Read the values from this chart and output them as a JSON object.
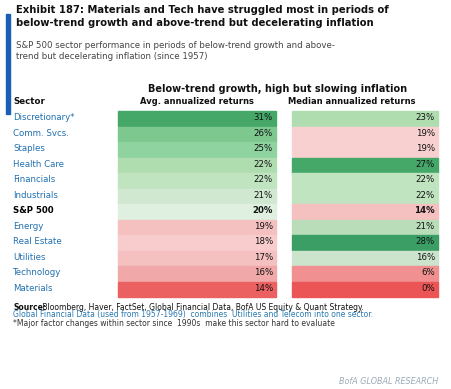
{
  "title_bold": "Exhibit 187: Materials and Tech have struggled most in periods of\nbelow-trend growth and above-trend but decelerating inflation",
  "subtitle": "S&P 500 sector performance in periods of below-trend growth and above-\ntrend but decelerating inflation (since 1957)",
  "table_header": "Below-trend growth, high but slowing inflation",
  "col1_header": "Sector",
  "col2_header": "Avg. annualized returns",
  "col3_header": "Median annualized returns",
  "sectors": [
    "Discretionary*",
    "Comm. Svcs.",
    "Staples",
    "Health Care",
    "Financials",
    "Industrials",
    "S&P 500",
    "Energy",
    "Real Estate",
    "Utilities",
    "Technology",
    "Materials"
  ],
  "avg_returns": [
    31,
    26,
    25,
    22,
    22,
    21,
    20,
    19,
    18,
    17,
    16,
    14
  ],
  "median_returns": [
    23,
    19,
    19,
    27,
    22,
    22,
    14,
    21,
    28,
    16,
    6,
    0
  ],
  "sp500_index": 6,
  "avg_colors": [
    "#45a868",
    "#7dc88f",
    "#8fd4a0",
    "#b0ddb0",
    "#c0e4c0",
    "#d0e8d0",
    "#e0f0e0",
    "#f5c0c0",
    "#f8cccc",
    "#f5c0c0",
    "#f0a8a8",
    "#eb6060"
  ],
  "median_colors": [
    "#b0ddb0",
    "#f8d0d0",
    "#f8d0d0",
    "#45a868",
    "#c0e4c0",
    "#c0e4c0",
    "#f5c0c0",
    "#b8ddb8",
    "#3a9e65",
    "#cce4cc",
    "#f09090",
    "#eb5555"
  ],
  "source_line1_bold": "Source:",
  "source_line1_rest": " Bloomberg, Haver, FactSet, Global Financial Data, BofA US Equity & Quant Strategy.",
  "source_line2": "Global Financial Data (used from 1957-1969)  combines  Utilities and Telecom into one sector.",
  "source_line3": "*Major factor changes within sector since  1990s  make this sector hard to evaluate",
  "brand_text": "BofA GLOBAL RESEARCH",
  "left_bar_color": "#1a5fb4",
  "background_color": "#ffffff",
  "sector_text_color": "#2070b0",
  "sp500_text_color": "#000000",
  "source_link_color": "#2878b0",
  "brand_color": "#9aabb8"
}
